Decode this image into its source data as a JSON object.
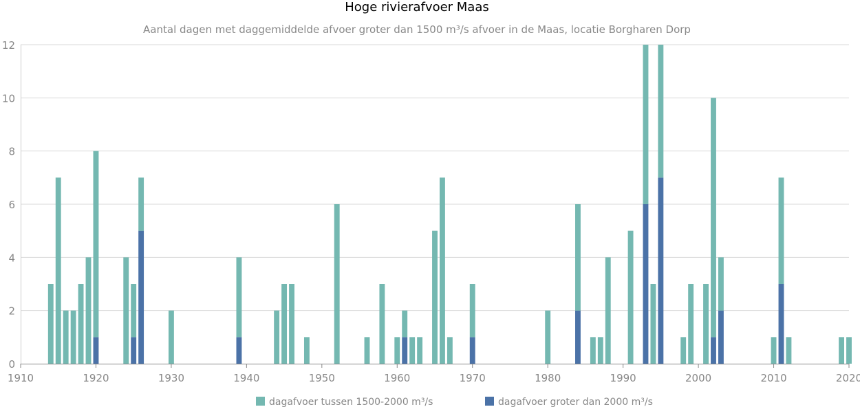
{
  "chart_data": {
    "type": "bar",
    "stacked": true,
    "title": "Hoge rivierafvoer Maas",
    "subtitle": "Aantal dagen met daggemiddelde afvoer groter dan 1500 m³/s afvoer in de Maas, locatie Borgharen Dorp",
    "xlim": [
      1910,
      2021
    ],
    "ylim": [
      0,
      12
    ],
    "x_ticks": [
      1910,
      1920,
      1930,
      1940,
      1950,
      1960,
      1970,
      1980,
      1990,
      2000,
      2010,
      2020
    ],
    "y_ticks": [
      0,
      2,
      4,
      6,
      8,
      10,
      12
    ],
    "grid": true,
    "legend_position": "bottom-center",
    "x": [
      1914,
      1915,
      1916,
      1917,
      1918,
      1919,
      1920,
      1924,
      1925,
      1926,
      1930,
      1939,
      1944,
      1945,
      1946,
      1948,
      1952,
      1956,
      1958,
      1960,
      1961,
      1962,
      1963,
      1965,
      1966,
      1967,
      1970,
      1980,
      1984,
      1986,
      1987,
      1988,
      1991,
      1993,
      1994,
      1995,
      1998,
      1999,
      2001,
      2002,
      2003,
      2010,
      2011,
      2012,
      2019,
      2020
    ],
    "series": [
      {
        "name": "dagafvoer groter dan 2000 m³/s",
        "color": "#4b72a7",
        "values": [
          0,
          0,
          0,
          0,
          0,
          0,
          1,
          0,
          1,
          5,
          0,
          1,
          0,
          0,
          0,
          0,
          0,
          0,
          0,
          0,
          1,
          0,
          0,
          0,
          0,
          0,
          1,
          0,
          2,
          0,
          0,
          0,
          0,
          6,
          0,
          7,
          0,
          0,
          0,
          1,
          2,
          0,
          3,
          0,
          0,
          0
        ]
      },
      {
        "name": "dagafvoer tussen 1500-2000 m³/s",
        "color": "#74b8b1",
        "values": [
          3,
          7,
          2,
          2,
          3,
          4,
          7,
          4,
          2,
          2,
          2,
          3,
          2,
          3,
          3,
          1,
          6,
          1,
          3,
          1,
          1,
          1,
          1,
          5,
          7,
          1,
          2,
          2,
          4,
          1,
          1,
          4,
          5,
          6,
          3,
          5,
          1,
          3,
          3,
          9,
          2,
          1,
          4,
          1,
          1,
          1
        ]
      }
    ],
    "legend": [
      {
        "label": "dagafvoer tussen 1500-2000 m³/s",
        "color": "#74b8b1"
      },
      {
        "label": "dagafvoer groter dan 2000 m³/s",
        "color": "#4b72a7"
      }
    ]
  }
}
